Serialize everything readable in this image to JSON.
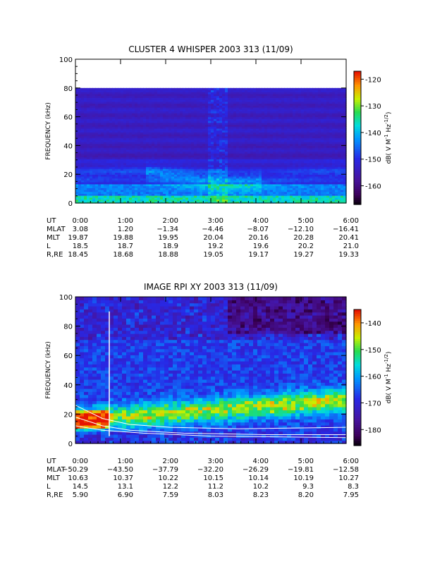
{
  "chart_data": [
    {
      "type": "heatmap",
      "title": "CLUSTER 4 WHISPER 2003 313 (11/09)",
      "ylabel": "FREQUENCY (kHz)",
      "ylim": [
        0,
        100
      ],
      "yticks": [
        "0",
        "20",
        "40",
        "60",
        "80",
        "100"
      ],
      "data_top_khz": 80,
      "colorbar": {
        "label": "dB( V M⁻¹ Hz⁻¹ᐟ²)",
        "label_main": "dB( V M",
        "label_sup1": "-1",
        "label_mid": " Hz",
        "label_sup2": "-1/2",
        "label_end": ")",
        "range": [
          -167,
          -117
        ],
        "ticks": [
          "-120",
          "-130",
          "-140",
          "-150",
          "-160"
        ]
      },
      "ephemeris": {
        "row_labels": [
          "UT",
          "MLAT",
          "MLT",
          "L",
          "R,RE"
        ],
        "columns": [
          [
            "0:00",
            "3.08",
            "19.87",
            "18.5",
            "18.45"
          ],
          [
            "1:00",
            "1.20",
            "19.88",
            "18.7",
            "18.68"
          ],
          [
            "2:00",
            "−1.34",
            "19.95",
            "18.9",
            "18.88"
          ],
          [
            "3:00",
            "−4.46",
            "20.04",
            "19.2",
            "19.05"
          ],
          [
            "4:00",
            "−8.07",
            "20.16",
            "19.6",
            "19.17"
          ],
          [
            "5:00",
            "−12.10",
            "20.28",
            "20.2",
            "19.27"
          ],
          [
            "6:00",
            "−16.41",
            "20.41",
            "21.0",
            "19.33"
          ]
        ]
      }
    },
    {
      "type": "heatmap",
      "title": "IMAGE RPI XY 2003 313 (11/09)",
      "ylabel": "FREQUENCY (kHz)",
      "ylim": [
        0,
        100
      ],
      "yticks": [
        "0",
        "20",
        "40",
        "60",
        "80",
        "100"
      ],
      "colorbar": {
        "label_main": "dB( V M",
        "label_sup1": "-1",
        "label_mid": " Hz",
        "label_sup2": "-1/2",
        "label_end": ")",
        "range": [
          -186,
          -135
        ],
        "ticks": [
          "-140",
          "-150",
          "-160",
          "-170",
          "-180"
        ]
      },
      "ephemeris": {
        "row_labels": [
          "UT",
          "MLAT",
          "MLT",
          "L",
          "R,RE"
        ],
        "columns": [
          [
            "0:00",
            "−50.29",
            "10.63",
            "14.5",
            "5.90"
          ],
          [
            "1:00",
            "−43.50",
            "10.37",
            "13.1",
            "6.90"
          ],
          [
            "2:00",
            "−37.79",
            "10.22",
            "12.2",
            "7.59"
          ],
          [
            "3:00",
            "−32.20",
            "10.15",
            "11.2",
            "8.03"
          ],
          [
            "4:00",
            "−26.29",
            "10.14",
            "10.2",
            "8.23"
          ],
          [
            "5:00",
            "−19.81",
            "10.19",
            "9.3",
            "8.20"
          ],
          [
            "6:00",
            "−12.58",
            "10.27",
            "8.3",
            "7.95"
          ]
        ]
      }
    }
  ]
}
